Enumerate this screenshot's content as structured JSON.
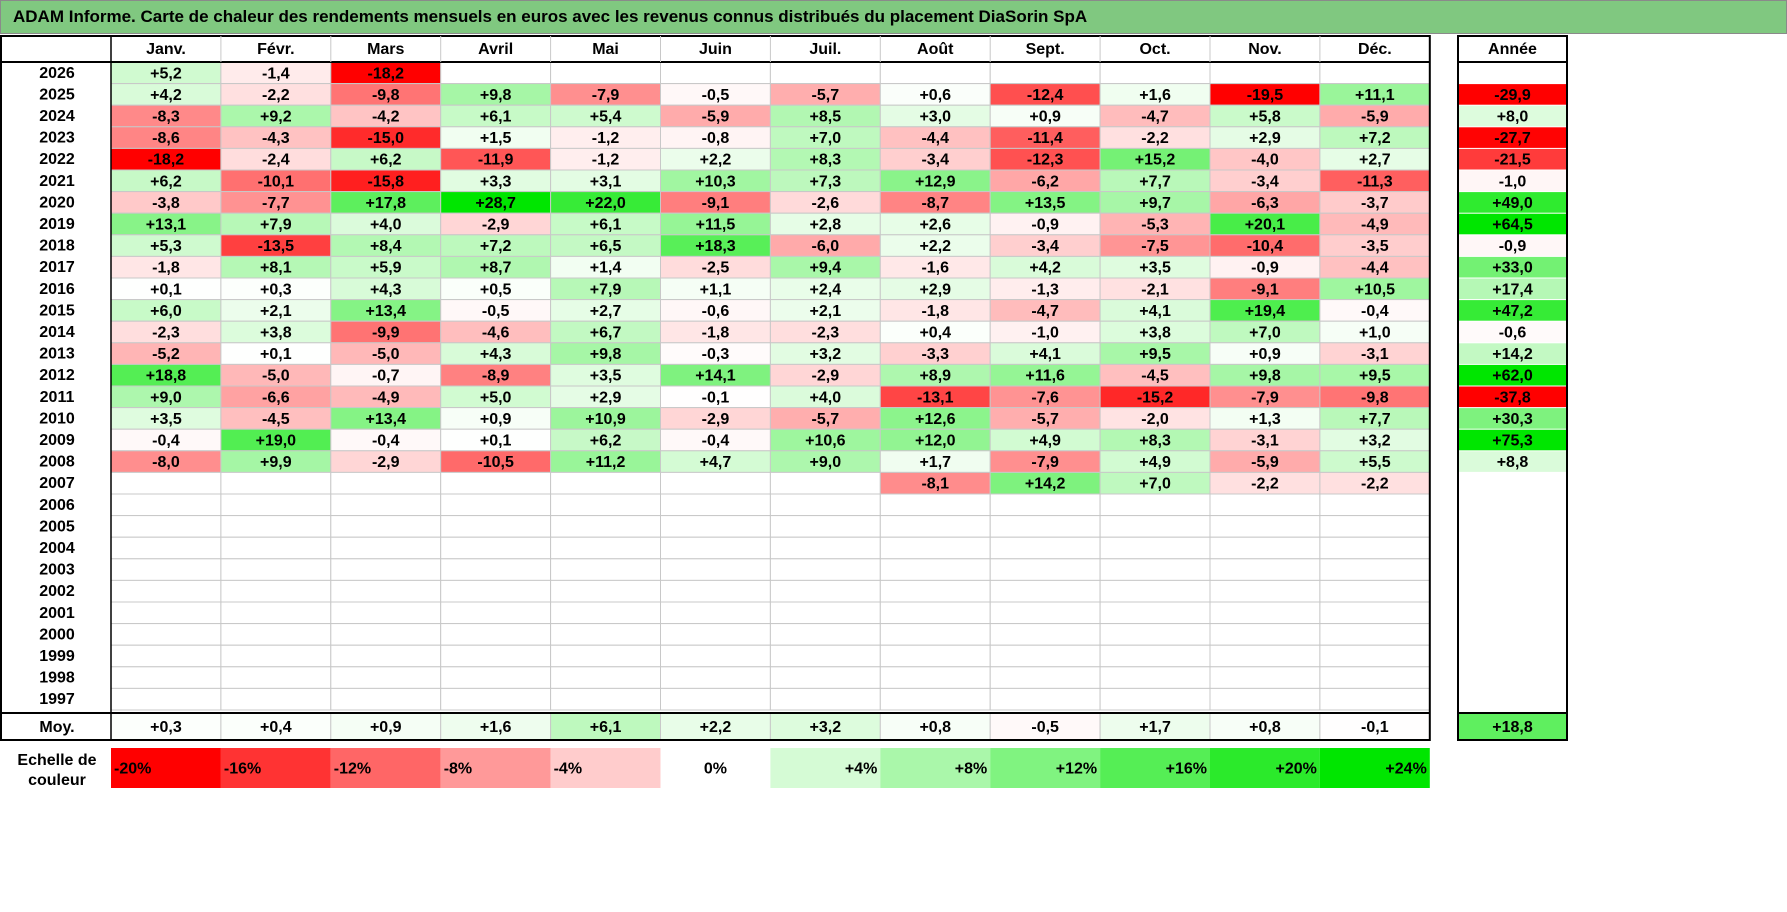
{
  "title": "ADAM Informe. Carte de chaleur des rendements mensuels en euros avec les revenus connus distribués du placement DiaSorin SpA",
  "colors": {
    "title_bg": "#80c880",
    "neg_max": "#ff0000",
    "pos_max": "#00e600",
    "neutral": "#ffffff",
    "grid": "#c8c8c8",
    "frame": "#000000"
  },
  "chart_data": {
    "type": "heatmap",
    "title": "ADAM Informe. Carte de chaleur des rendements mensuels en euros avec les revenus connus distribués du placement DiaSorin SpA",
    "columns": [
      "Janv.",
      "Févr.",
      "Mars",
      "Avril",
      "Mai",
      "Juin",
      "Juil.",
      "Août",
      "Sept.",
      "Oct.",
      "Nov.",
      "Déc."
    ],
    "year_header": "Année",
    "rows": [
      {
        "year": "2026",
        "values": [
          5.2,
          -1.4,
          -18.2,
          null,
          null,
          null,
          null,
          null,
          null,
          null,
          null,
          null
        ],
        "annual": null
      },
      {
        "year": "2025",
        "values": [
          4.2,
          -2.2,
          -9.8,
          9.8,
          -7.9,
          -0.5,
          -5.7,
          0.6,
          -12.4,
          1.6,
          -19.5,
          11.1
        ],
        "annual": -29.9
      },
      {
        "year": "2024",
        "values": [
          -8.3,
          9.2,
          -4.2,
          6.1,
          5.4,
          -5.9,
          8.5,
          3.0,
          0.9,
          -4.7,
          5.8,
          -5.9
        ],
        "annual": 8.0
      },
      {
        "year": "2023",
        "values": [
          -8.6,
          -4.3,
          -15.0,
          1.5,
          -1.2,
          -0.8,
          7.0,
          -4.4,
          -11.4,
          -2.2,
          2.9,
          7.2
        ],
        "annual": -27.7
      },
      {
        "year": "2022",
        "values": [
          -18.2,
          -2.4,
          6.2,
          -11.9,
          -1.2,
          2.2,
          8.3,
          -3.4,
          -12.3,
          15.2,
          -4.0,
          2.7
        ],
        "annual": -21.5
      },
      {
        "year": "2021",
        "values": [
          6.2,
          -10.1,
          -15.8,
          3.3,
          3.1,
          10.3,
          7.3,
          12.9,
          -6.2,
          7.7,
          -3.4,
          -11.3
        ],
        "annual": -1.0
      },
      {
        "year": "2020",
        "values": [
          -3.8,
          -7.7,
          17.8,
          28.7,
          22.0,
          -9.1,
          -2.6,
          -8.7,
          13.5,
          9.7,
          -6.3,
          -3.7
        ],
        "annual": 49.0
      },
      {
        "year": "2019",
        "values": [
          13.1,
          7.9,
          4.0,
          -2.9,
          6.1,
          11.5,
          2.8,
          2.6,
          -0.9,
          -5.3,
          20.1,
          -4.9
        ],
        "annual": 64.5
      },
      {
        "year": "2018",
        "values": [
          5.3,
          -13.5,
          8.4,
          7.2,
          6.5,
          18.3,
          -6.0,
          2.2,
          -3.4,
          -7.5,
          -10.4,
          -3.5
        ],
        "annual": -0.9
      },
      {
        "year": "2017",
        "values": [
          -1.8,
          8.1,
          5.9,
          8.7,
          1.4,
          -2.5,
          9.4,
          -1.6,
          4.2,
          3.5,
          -0.9,
          -4.4
        ],
        "annual": 33.0
      },
      {
        "year": "2016",
        "values": [
          0.1,
          0.3,
          4.3,
          0.5,
          7.9,
          1.1,
          2.4,
          2.9,
          -1.3,
          -2.1,
          -9.1,
          10.5
        ],
        "annual": 17.4
      },
      {
        "year": "2015",
        "values": [
          6.0,
          2.1,
          13.4,
          -0.5,
          2.7,
          -0.6,
          2.1,
          -1.8,
          -4.7,
          4.1,
          19.4,
          -0.4
        ],
        "annual": 47.2
      },
      {
        "year": "2014",
        "values": [
          -2.3,
          3.8,
          -9.9,
          -4.6,
          6.7,
          -1.8,
          -2.3,
          0.4,
          -1.0,
          3.8,
          7.0,
          1.0
        ],
        "annual": -0.6
      },
      {
        "year": "2013",
        "values": [
          -5.2,
          0.1,
          -5.0,
          4.3,
          9.8,
          -0.3,
          3.2,
          -3.3,
          4.1,
          9.5,
          0.9,
          -3.1
        ],
        "annual": 14.2
      },
      {
        "year": "2012",
        "values": [
          18.8,
          -5.0,
          -0.7,
          -8.9,
          3.5,
          14.1,
          -2.9,
          8.9,
          11.6,
          -4.5,
          9.8,
          9.5
        ],
        "annual": 62.0
      },
      {
        "year": "2011",
        "values": [
          9.0,
          -6.6,
          -4.9,
          5.0,
          2.9,
          -0.1,
          4.0,
          -13.1,
          -7.6,
          -15.2,
          -7.9,
          -9.8
        ],
        "annual": -37.8
      },
      {
        "year": "2010",
        "values": [
          3.5,
          -4.5,
          13.4,
          0.9,
          10.9,
          -2.9,
          -5.7,
          12.6,
          -5.7,
          -2.0,
          1.3,
          7.7
        ],
        "annual": 30.3
      },
      {
        "year": "2009",
        "values": [
          -0.4,
          19.0,
          -0.4,
          0.1,
          6.2,
          -0.4,
          10.6,
          12.0,
          4.9,
          8.3,
          -3.1,
          3.2
        ],
        "annual": 75.3
      },
      {
        "year": "2008",
        "values": [
          -8.0,
          9.9,
          -2.9,
          -10.5,
          11.2,
          4.7,
          9.0,
          1.7,
          -7.9,
          4.9,
          -5.9,
          5.5
        ],
        "annual": 8.8
      },
      {
        "year": "2007",
        "values": [
          null,
          null,
          null,
          null,
          null,
          null,
          null,
          -8.1,
          14.2,
          7.0,
          -2.2,
          -2.2
        ],
        "annual": null
      },
      {
        "year": "2006",
        "values": [
          null,
          null,
          null,
          null,
          null,
          null,
          null,
          null,
          null,
          null,
          null,
          null
        ],
        "annual": null
      },
      {
        "year": "2005",
        "values": [
          null,
          null,
          null,
          null,
          null,
          null,
          null,
          null,
          null,
          null,
          null,
          null
        ],
        "annual": null
      },
      {
        "year": "2004",
        "values": [
          null,
          null,
          null,
          null,
          null,
          null,
          null,
          null,
          null,
          null,
          null,
          null
        ],
        "annual": null
      },
      {
        "year": "2003",
        "values": [
          null,
          null,
          null,
          null,
          null,
          null,
          null,
          null,
          null,
          null,
          null,
          null
        ],
        "annual": null
      },
      {
        "year": "2002",
        "values": [
          null,
          null,
          null,
          null,
          null,
          null,
          null,
          null,
          null,
          null,
          null,
          null
        ],
        "annual": null
      },
      {
        "year": "2001",
        "values": [
          null,
          null,
          null,
          null,
          null,
          null,
          null,
          null,
          null,
          null,
          null,
          null
        ],
        "annual": null
      },
      {
        "year": "2000",
        "values": [
          null,
          null,
          null,
          null,
          null,
          null,
          null,
          null,
          null,
          null,
          null,
          null
        ],
        "annual": null
      },
      {
        "year": "1999",
        "values": [
          null,
          null,
          null,
          null,
          null,
          null,
          null,
          null,
          null,
          null,
          null,
          null
        ],
        "annual": null
      },
      {
        "year": "1998",
        "values": [
          null,
          null,
          null,
          null,
          null,
          null,
          null,
          null,
          null,
          null,
          null,
          null
        ],
        "annual": null
      },
      {
        "year": "1997",
        "values": [
          null,
          null,
          null,
          null,
          null,
          null,
          null,
          null,
          null,
          null,
          null,
          null
        ],
        "annual": null
      }
    ],
    "average": {
      "label": "Moy.",
      "values": [
        0.3,
        0.4,
        0.9,
        1.6,
        6.1,
        2.2,
        3.2,
        0.8,
        -0.5,
        1.7,
        0.8,
        -0.1
      ],
      "annual": 18.8
    },
    "scale": {
      "label_line1": "Echelle de",
      "label_line2": "couleur",
      "stops": [
        -20,
        -16,
        -12,
        -8,
        -4,
        0,
        4,
        8,
        12,
        16,
        20,
        24
      ],
      "labels": [
        "-20%",
        "-16%",
        "-12%",
        "-8%",
        "-4%",
        "0%",
        "+4%",
        "+8%",
        "+12%",
        "+16%",
        "+20%",
        "+24%"
      ]
    }
  }
}
